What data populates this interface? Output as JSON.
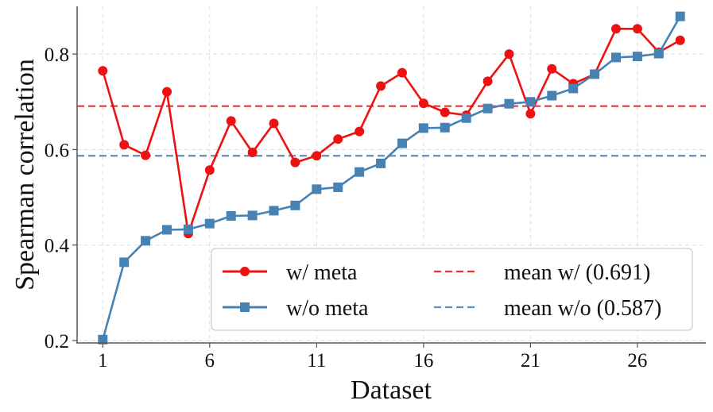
{
  "chart_data": {
    "type": "line",
    "xlabel": "Dataset",
    "ylabel": "Spearman correlation",
    "xlim": [
      -0.2,
      29.2
    ],
    "ylim": [
      0.195,
      0.9
    ],
    "xticks": [
      1,
      6,
      11,
      16,
      21,
      26
    ],
    "yticks": [
      0.2,
      0.4,
      0.6,
      0.8
    ],
    "grid": true,
    "legend_position": "lower-right",
    "x": [
      1,
      2,
      3,
      4,
      5,
      6,
      7,
      8,
      9,
      10,
      11,
      12,
      13,
      14,
      15,
      16,
      17,
      18,
      19,
      20,
      21,
      22,
      23,
      24,
      25,
      26,
      27,
      28
    ],
    "series": [
      {
        "name": "w/ meta",
        "color": "#ee1111",
        "marker": "circle",
        "values": [
          0.765,
          0.61,
          0.588,
          0.721,
          0.424,
          0.557,
          0.66,
          0.594,
          0.655,
          0.573,
          0.587,
          0.622,
          0.638,
          0.733,
          0.761,
          0.697,
          0.678,
          0.672,
          0.743,
          0.8,
          0.675,
          0.769,
          0.738,
          0.758,
          0.853,
          0.853,
          0.804,
          0.829
        ]
      },
      {
        "name": "w/o meta",
        "color": "#4682b4",
        "marker": "square",
        "values": [
          0.202,
          0.364,
          0.409,
          0.432,
          0.433,
          0.445,
          0.461,
          0.462,
          0.472,
          0.483,
          0.517,
          0.521,
          0.553,
          0.571,
          0.613,
          0.645,
          0.646,
          0.666,
          0.686,
          0.696,
          0.7,
          0.713,
          0.728,
          0.758,
          0.793,
          0.795,
          0.801,
          0.879
        ]
      }
    ],
    "reference_lines": [
      {
        "name": "mean w/ (0.691)",
        "value": 0.691,
        "color": "#ee3333"
      },
      {
        "name": "mean w/o (0.587)",
        "value": 0.587,
        "color": "#5b8fbf"
      }
    ]
  }
}
